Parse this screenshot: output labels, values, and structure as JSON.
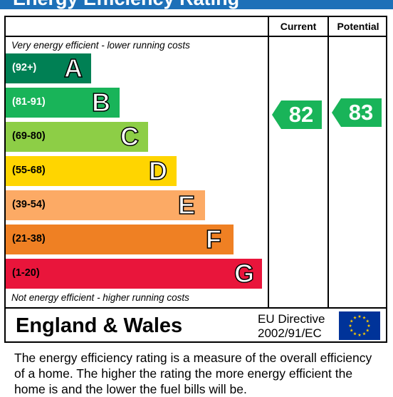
{
  "title": "Energy Efficiency Rating",
  "columns": {
    "current": "Current",
    "potential": "Potential"
  },
  "top_note": "Very energy efficient - lower running costs",
  "bottom_note": "Not energy efficient - higher running costs",
  "bands": [
    {
      "range": "(92+)",
      "letter": "A",
      "color": "#008054",
      "range_color": "#ffffff"
    },
    {
      "range": "(81-91)",
      "letter": "B",
      "color": "#19b459",
      "range_color": "#ffffff"
    },
    {
      "range": "(69-80)",
      "letter": "C",
      "color": "#8dce46",
      "range_color": "#000000"
    },
    {
      "range": "(55-68)",
      "letter": "D",
      "color": "#ffd500",
      "range_color": "#000000"
    },
    {
      "range": "(39-54)",
      "letter": "E",
      "color": "#fcaa65",
      "range_color": "#000000"
    },
    {
      "range": "(21-38)",
      "letter": "F",
      "color": "#ef8023",
      "range_color": "#000000"
    },
    {
      "range": "(1-20)",
      "letter": "G",
      "color": "#e9153b",
      "range_color": "#000000"
    }
  ],
  "current_rating": {
    "value": "82",
    "band": "B",
    "color": "#19b459"
  },
  "potential_rating": {
    "value": "83",
    "band": "B",
    "color": "#19b459"
  },
  "footer": {
    "region": "England & Wales",
    "directive_line1": "EU Directive",
    "directive_line2": "2002/91/EC",
    "flag_color": "#003399",
    "star_color": "#ffcc00"
  },
  "description": "The energy efficiency rating is a measure of the overall efficiency of a home.  The higher the rating the more energy efficient the home is and the lower the fuel bills will be."
}
